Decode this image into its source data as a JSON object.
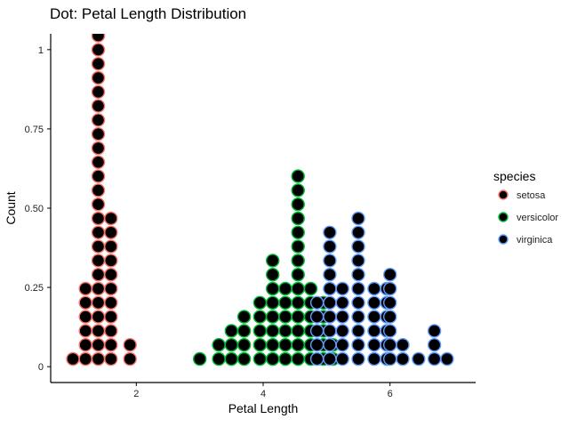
{
  "chart_data": {
    "type": "scatter",
    "subtype": "dotplot",
    "title": "Dot: Petal Length Distribution",
    "xlabel": "Petal Length",
    "ylabel": "Count",
    "xlim": [
      0.65,
      7.35
    ],
    "ylim": [
      -0.05,
      1.05
    ],
    "xticks": [
      2,
      4,
      6
    ],
    "xtick_labels": [
      "2",
      "4",
      "6"
    ],
    "yticks": [
      0,
      0.25,
      0.5,
      0.75,
      1
    ],
    "ytick_labels": [
      "0",
      "0.25",
      "0.50",
      "0.75",
      "1"
    ],
    "grid": false,
    "legend": {
      "title": "species",
      "position": "right"
    },
    "dot_fill": "#000000",
    "series": [
      {
        "name": "setosa",
        "color": "#f8766d",
        "stacks": [
          {
            "x": 1.0,
            "count": 1
          },
          {
            "x": 1.2,
            "count": 6
          },
          {
            "x": 1.4,
            "count": 28
          },
          {
            "x": 1.6,
            "count": 11
          },
          {
            "x": 1.9,
            "count": 2
          }
        ]
      },
      {
        "name": "versicolor",
        "color": "#00ba38",
        "stacks": [
          {
            "x": 3.0,
            "count": 1
          },
          {
            "x": 3.3,
            "count": 2
          },
          {
            "x": 3.5,
            "count": 3
          },
          {
            "x": 3.7,
            "count": 4
          },
          {
            "x": 3.95,
            "count": 5
          },
          {
            "x": 4.15,
            "count": 8
          },
          {
            "x": 4.35,
            "count": 6
          },
          {
            "x": 4.55,
            "count": 14
          },
          {
            "x": 4.75,
            "count": 6
          },
          {
            "x": 4.95,
            "count": 5
          },
          {
            "x": 5.1,
            "count": 2
          }
        ]
      },
      {
        "name": "virginica",
        "color": "#619cff",
        "stacks": [
          {
            "x": 4.85,
            "count": 5
          },
          {
            "x": 5.05,
            "count": 10
          },
          {
            "x": 5.25,
            "count": 6
          },
          {
            "x": 5.5,
            "count": 11
          },
          {
            "x": 5.75,
            "count": 6
          },
          {
            "x": 5.95,
            "count": 6
          },
          {
            "x": 6.0,
            "count": 7
          },
          {
            "x": 6.2,
            "count": 2
          },
          {
            "x": 6.45,
            "count": 1
          },
          {
            "x": 6.7,
            "count": 3
          },
          {
            "x": 6.9,
            "count": 1
          }
        ]
      }
    ]
  }
}
